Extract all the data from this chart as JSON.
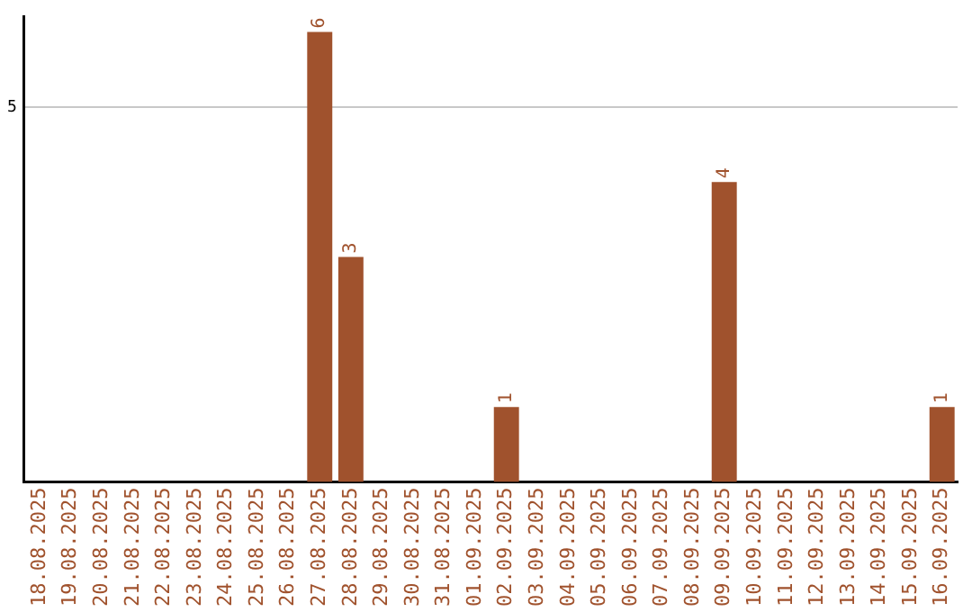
{
  "chart_data": {
    "type": "bar",
    "categories": [
      "18.08.2025",
      "19.08.2025",
      "20.08.2025",
      "21.08.2025",
      "22.08.2025",
      "23.08.2025",
      "24.08.2025",
      "25.08.2025",
      "26.08.2025",
      "27.08.2025",
      "28.08.2025",
      "29.08.2025",
      "30.08.2025",
      "31.08.2025",
      "01.09.2025",
      "02.09.2025",
      "03.09.2025",
      "04.09.2025",
      "05.09.2025",
      "06.09.2025",
      "07.09.2025",
      "08.09.2025",
      "09.09.2025",
      "10.09.2025",
      "11.09.2025",
      "12.09.2025",
      "13.09.2025",
      "14.09.2025",
      "15.09.2025",
      "16.09.2025"
    ],
    "values": [
      0,
      0,
      0,
      0,
      0,
      0,
      0,
      0,
      0,
      6,
      3,
      0,
      0,
      0,
      0,
      1,
      0,
      0,
      0,
      0,
      0,
      0,
      4,
      0,
      0,
      0,
      0,
      0,
      0,
      1
    ],
    "color": "#a0522d",
    "value_labels": [
      null,
      null,
      null,
      null,
      null,
      null,
      null,
      null,
      null,
      "6",
      "3",
      null,
      null,
      null,
      null,
      "1",
      null,
      null,
      null,
      null,
      null,
      null,
      "4",
      null,
      null,
      null,
      null,
      null,
      null,
      "1"
    ],
    "ylim": [
      0,
      6.2
    ],
    "yticks": [
      5
    ],
    "grid": "y",
    "legend": false
  }
}
